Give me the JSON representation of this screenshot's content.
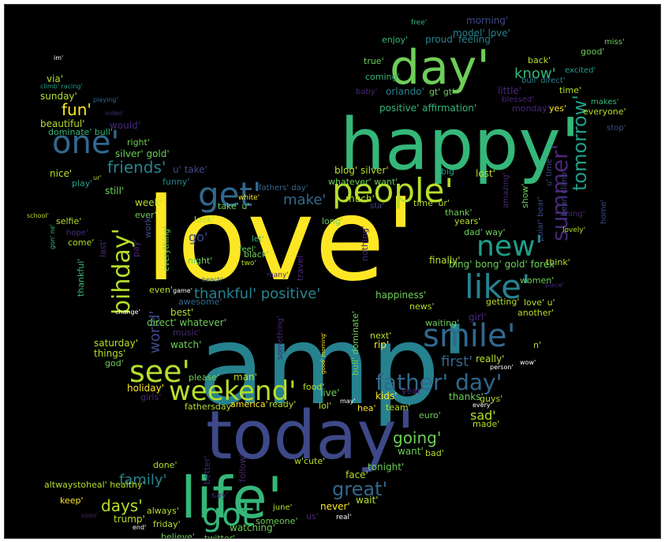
{
  "background": "#000000",
  "palette": [
    "#fde725",
    "#b5de2b",
    "#6ece58",
    "#35b779",
    "#1f9e89",
    "#26828e",
    "#31688e",
    "#3e4989",
    "#482878",
    "#440154"
  ],
  "words": [
    {
      "text": "love'",
      "color": "#fde725"
    },
    {
      "text": "amp'",
      "color": "#26828e"
    },
    {
      "text": "happy'",
      "color": "#35b779"
    },
    {
      "text": "today'",
      "color": "#3e4989"
    },
    {
      "text": "life'",
      "color": "#35b779"
    },
    {
      "text": "day'",
      "color": "#6ece58"
    },
    {
      "text": "people'",
      "color": "#b5de2b"
    },
    {
      "text": "one'",
      "color": "#31688e"
    },
    {
      "text": "get'",
      "color": "#31688e"
    },
    {
      "text": "smile'",
      "color": "#31688e"
    },
    {
      "text": "like'",
      "color": "#26828e"
    },
    {
      "text": "new'",
      "color": "#1f9e89"
    },
    {
      "text": "got'",
      "color": "#35b779"
    },
    {
      "text": "see'",
      "color": "#b5de2b"
    },
    {
      "text": "weekend'",
      "color": "#b5de2b"
    },
    {
      "text": "bihday'",
      "color": "#b5de2b"
    },
    {
      "text": "father' day'",
      "color": "#31688e"
    },
    {
      "text": "summer'",
      "color": "#482878"
    },
    {
      "text": "tomorrow'",
      "color": "#1f9e89"
    },
    {
      "text": "going'",
      "color": "#6ece58"
    },
    {
      "text": "great'",
      "color": "#31688e"
    },
    {
      "text": "family'",
      "color": "#26828e"
    },
    {
      "text": "days'",
      "color": "#b5de2b"
    },
    {
      "text": "friends'",
      "color": "#26828e"
    },
    {
      "text": "fun'",
      "color": "#fde725"
    },
    {
      "text": "know'",
      "color": "#35b779"
    },
    {
      "text": "thankful' positive'",
      "color": "#26828e"
    },
    {
      "text": "make'",
      "color": "#31688e"
    },
    {
      "text": "first'",
      "color": "#31688e"
    },
    {
      "text": "world'",
      "color": "#3e4989"
    },
    {
      "text": "sad'",
      "color": "#b5de2b"
    },
    {
      "text": "go'",
      "color": "#3e4989"
    },
    {
      "text": "model' love'",
      "color": "#26828e"
    },
    {
      "text": "morning'",
      "color": "#3e4989"
    },
    {
      "text": "enjoy'",
      "color": "#35b779"
    },
    {
      "text": "proud' feeling'",
      "color": "#26828e"
    },
    {
      "text": "free'",
      "color": "#35b779"
    },
    {
      "text": "miss'",
      "color": "#6ece58"
    },
    {
      "text": "good'",
      "color": "#6ece58"
    },
    {
      "text": "back'",
      "color": "#b5de2b"
    },
    {
      "text": "true'",
      "color": "#6ece58"
    },
    {
      "text": "excited'",
      "color": "#1f9e89"
    },
    {
      "text": "coming'",
      "color": "#35b779"
    },
    {
      "text": "bull' direct'",
      "color": "#26828e"
    },
    {
      "text": "baby'",
      "color": "#482878"
    },
    {
      "text": "orlando'",
      "color": "#26828e"
    },
    {
      "text": "gt' gt'",
      "color": "#6ece58"
    },
    {
      "text": "little'",
      "color": "#482878"
    },
    {
      "text": "time'",
      "color": "#b5de2b"
    },
    {
      "text": "blessed'",
      "color": "#482878"
    },
    {
      "text": "makes'",
      "color": "#35b779"
    },
    {
      "text": "positive' affirmation'",
      "color": "#35b779"
    },
    {
      "text": "monday'",
      "color": "#482878"
    },
    {
      "text": "yes'",
      "color": "#fde725"
    },
    {
      "text": "everyone'",
      "color": "#b5de2b"
    },
    {
      "text": "stop'",
      "color": "#3e4989"
    },
    {
      "text": "im'",
      "color": "#ffffff"
    },
    {
      "text": "via'",
      "color": "#b5de2b"
    },
    {
      "text": "climb' racing'",
      "color": "#1f9e89"
    },
    {
      "text": "playing'",
      "color": "#31688e"
    },
    {
      "text": "sunday'",
      "color": "#b5de2b"
    },
    {
      "text": "video'",
      "color": "#482878"
    },
    {
      "text": "would'",
      "color": "#482878"
    },
    {
      "text": "beautiful'",
      "color": "#b5de2b"
    },
    {
      "text": "dominate' bull'",
      "color": "#35b779"
    },
    {
      "text": "right'",
      "color": "#6ece58"
    },
    {
      "text": "silver' gold'",
      "color": "#6ece58"
    },
    {
      "text": "nice'",
      "color": "#b5de2b"
    },
    {
      "text": "play'",
      "color": "#1f9e89"
    },
    {
      "text": "ur'",
      "color": "#b5de2b"
    },
    {
      "text": "funny'",
      "color": "#26828e"
    },
    {
      "text": "u' take'",
      "color": "#3e4989"
    },
    {
      "text": "blog' silver'",
      "color": "#b5de2b"
    },
    {
      "text": "whatever' want'",
      "color": "#6ece58"
    },
    {
      "text": "big'",
      "color": "#1f9e89"
    },
    {
      "text": "lost'",
      "color": "#b5de2b"
    },
    {
      "text": "still'",
      "color": "#6ece58"
    },
    {
      "text": "white'",
      "color": "#fde725"
    },
    {
      "text": "fathers' day'",
      "color": "#31688e"
    },
    {
      "text": "much'",
      "color": "#b5de2b"
    },
    {
      "text": "sta'",
      "color": "#3e4989"
    },
    {
      "text": "time' ur'",
      "color": "#b5de2b"
    },
    {
      "text": "show'",
      "color": "#6ece58"
    },
    {
      "text": "u' time'",
      "color": "#3e4989"
    },
    {
      "text": "bear' climb'",
      "color": "#3e4989"
    },
    {
      "text": "home'",
      "color": "#3e4989"
    },
    {
      "text": "school'",
      "color": "#b5de2b"
    },
    {
      "text": "week'",
      "color": "#b5de2b"
    },
    {
      "text": "take' u'",
      "color": "#6ece58"
    },
    {
      "text": "ever'",
      "color": "#6ece58"
    },
    {
      "text": "thank'",
      "color": "#6ece58"
    },
    {
      "text": "polar' bear'",
      "color": "#3e4989"
    },
    {
      "text": "thing'",
      "color": "#482878"
    },
    {
      "text": "selfie'",
      "color": "#b5de2b"
    },
    {
      "text": "hope'",
      "color": "#482878"
    },
    {
      "text": "look'",
      "color": "#b5de2b"
    },
    {
      "text": "long'",
      "color": "#6ece58"
    },
    {
      "text": "years'",
      "color": "#b5de2b"
    },
    {
      "text": "amazing'",
      "color": "#482878"
    },
    {
      "text": "lovely'",
      "color": "#b5de2b"
    },
    {
      "text": "dad' way'",
      "color": "#6ece58"
    },
    {
      "text": "let'",
      "color": "#35b779"
    },
    {
      "text": "gon' ne'",
      "color": "#35b779"
    },
    {
      "text": "come'",
      "color": "#b5de2b"
    },
    {
      "text": "last'",
      "color": "#482878"
    },
    {
      "text": "pay'",
      "color": "#482878"
    },
    {
      "text": "work'",
      "color": "#3e4989"
    },
    {
      "text": "feel'",
      "color": "#6ece58"
    },
    {
      "text": "everything'",
      "color": "#6ece58"
    },
    {
      "text": "two'",
      "color": "#b5de2b"
    },
    {
      "text": "think'",
      "color": "#b5de2b"
    },
    {
      "text": "night'",
      "color": "#6ece58"
    },
    {
      "text": "travel'",
      "color": "#482878"
    },
    {
      "text": "nothing'",
      "color": "#482878"
    },
    {
      "text": "bing' bong' gold' forex'",
      "color": "#6ece58"
    },
    {
      "text": "thankful'",
      "color": "#35b779"
    },
    {
      "text": "finally'",
      "color": "#b5de2b"
    },
    {
      "text": "women'",
      "color": "#6ece58"
    },
    {
      "text": "many'",
      "color": "#482878"
    },
    {
      "text": "beach'",
      "color": "#31688e"
    },
    {
      "text": "place'",
      "color": "#482878"
    },
    {
      "text": "even'",
      "color": "#b5de2b"
    },
    {
      "text": "game'",
      "color": "#ffffff"
    },
    {
      "text": "happiness'",
      "color": "#6ece58"
    },
    {
      "text": "getting'",
      "color": "#b5de2b"
    },
    {
      "text": "love' u'",
      "color": "#b5de2b"
    },
    {
      "text": "awesome'",
      "color": "#31688e"
    },
    {
      "text": "change'",
      "color": "#ffffff"
    },
    {
      "text": "best'",
      "color": "#b5de2b"
    },
    {
      "text": "news'",
      "color": "#b5de2b"
    },
    {
      "text": "girl'",
      "color": "#482878"
    },
    {
      "text": "another'",
      "color": "#b5de2b"
    },
    {
      "text": "direct' whatever'",
      "color": "#6ece58"
    },
    {
      "text": "music'",
      "color": "#482878"
    },
    {
      "text": "waiting'",
      "color": "#6ece58"
    },
    {
      "text": "saturday'",
      "color": "#b5de2b"
    },
    {
      "text": "watch'",
      "color": "#6ece58"
    },
    {
      "text": "next'",
      "color": "#b5de2b"
    },
    {
      "text": "rip'",
      "color": "#fde725"
    },
    {
      "text": "n'",
      "color": "#b5de2b"
    },
    {
      "text": "things'",
      "color": "#b5de2b"
    },
    {
      "text": "god'",
      "color": "#6ece58"
    },
    {
      "text": "something'",
      "color": "#482878"
    },
    {
      "text": "please'",
      "color": "#6ece58"
    },
    {
      "text": "man'",
      "color": "#b5de2b"
    },
    {
      "text": "good' morning'",
      "color": "#fde725"
    },
    {
      "text": "bull' dominate'",
      "color": "#6ece58"
    },
    {
      "text": "really'",
      "color": "#b5de2b"
    },
    {
      "text": "person'",
      "color": "#ffffff"
    },
    {
      "text": "wow'",
      "color": "#ffffff"
    },
    {
      "text": "holiday'",
      "color": "#fde725"
    },
    {
      "text": "food'",
      "color": "#b5de2b"
    },
    {
      "text": "live'",
      "color": "#6ece58"
    },
    {
      "text": "kids'",
      "color": "#fde725"
    },
    {
      "text": "year'",
      "color": "#482878"
    },
    {
      "text": "thanks'",
      "color": "#6ece58"
    },
    {
      "text": "guys'",
      "color": "#b5de2b"
    },
    {
      "text": "girls'",
      "color": "#482878"
    },
    {
      "text": "lol'",
      "color": "#b5de2b"
    },
    {
      "text": "may'",
      "color": "#ffffff"
    },
    {
      "text": "every'",
      "color": "#ffffff"
    },
    {
      "text": "fathersday'",
      "color": "#b5de2b"
    },
    {
      "text": "america'",
      "color": "#fde725"
    },
    {
      "text": "ready'",
      "color": "#b5de2b"
    },
    {
      "text": "hea'",
      "color": "#fde725"
    },
    {
      "text": "team'",
      "color": "#b5de2b"
    },
    {
      "text": "euro'",
      "color": "#6ece58"
    },
    {
      "text": "made'",
      "color": "#b5de2b"
    },
    {
      "text": "want'",
      "color": "#6ece58"
    },
    {
      "text": "bad'",
      "color": "#b5de2b"
    },
    {
      "text": "done'",
      "color": "#b5de2b"
    },
    {
      "text": "better'",
      "color": "#482878"
    },
    {
      "text": "w'cute'",
      "color": "#b5de2b"
    },
    {
      "text": "tonight'",
      "color": "#6ece58"
    },
    {
      "text": "altwaystoheal' healthy'",
      "color": "#b5de2b"
    },
    {
      "text": "say'",
      "color": "#482878"
    },
    {
      "text": "follow'",
      "color": "#482878"
    },
    {
      "text": "face'",
      "color": "#b5de2b"
    },
    {
      "text": "wait'",
      "color": "#b5de2b"
    },
    {
      "text": "keep'",
      "color": "#fde725"
    },
    {
      "text": "always'",
      "color": "#b5de2b"
    },
    {
      "text": "june'",
      "color": "#b5de2b"
    },
    {
      "text": "never'",
      "color": "#fde725"
    },
    {
      "text": "soon'",
      "color": "#482878"
    },
    {
      "text": "trump'",
      "color": "#b5de2b"
    },
    {
      "text": "us'",
      "color": "#482878"
    },
    {
      "text": "real'",
      "color": "#ffffff"
    },
    {
      "text": "end'",
      "color": "#ffffff"
    },
    {
      "text": "friday'",
      "color": "#b5de2b"
    },
    {
      "text": "watching'",
      "color": "#6ece58"
    },
    {
      "text": "someone'",
      "color": "#6ece58"
    },
    {
      "text": "believe'",
      "color": "#6ece58"
    },
    {
      "text": "twitter'",
      "color": "#6ece58"
    },
    {
      "text": "black'",
      "color": "#6ece58"
    }
  ]
}
